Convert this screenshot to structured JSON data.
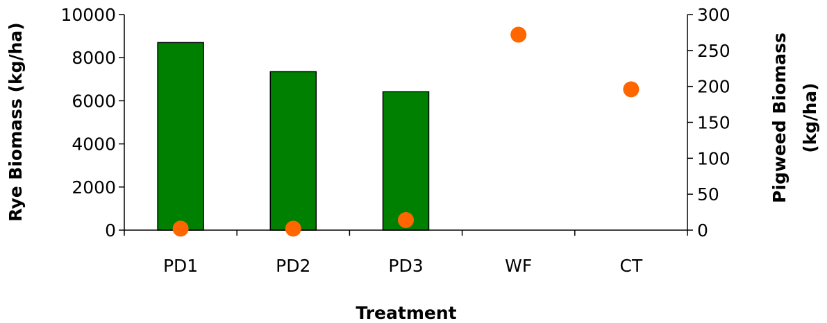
{
  "chart_data": {
    "type": "bar",
    "categories": [
      "PD1",
      "PD2",
      "PD3",
      "WF",
      "CT"
    ],
    "xlabel": "Treatment",
    "ylabel": "Rye Biomass (kg/ha)",
    "y2label_lines": [
      "Pigweed Biomass",
      "(kg/ha)"
    ],
    "ylim": [
      0,
      10000
    ],
    "yticks": [
      0,
      2000,
      4000,
      6000,
      8000,
      10000
    ],
    "y2lim": [
      0,
      300
    ],
    "y2ticks": [
      0,
      50,
      100,
      150,
      200,
      250,
      300
    ],
    "grid": false,
    "series": [
      {
        "kind": "bar",
        "axis": "left",
        "color": "#008000",
        "values": [
          8700,
          7350,
          6420,
          null,
          null
        ]
      },
      {
        "kind": "scatter",
        "axis": "right",
        "color": "#FF6600",
        "values": [
          2,
          2,
          14,
          272,
          196
        ]
      }
    ]
  }
}
